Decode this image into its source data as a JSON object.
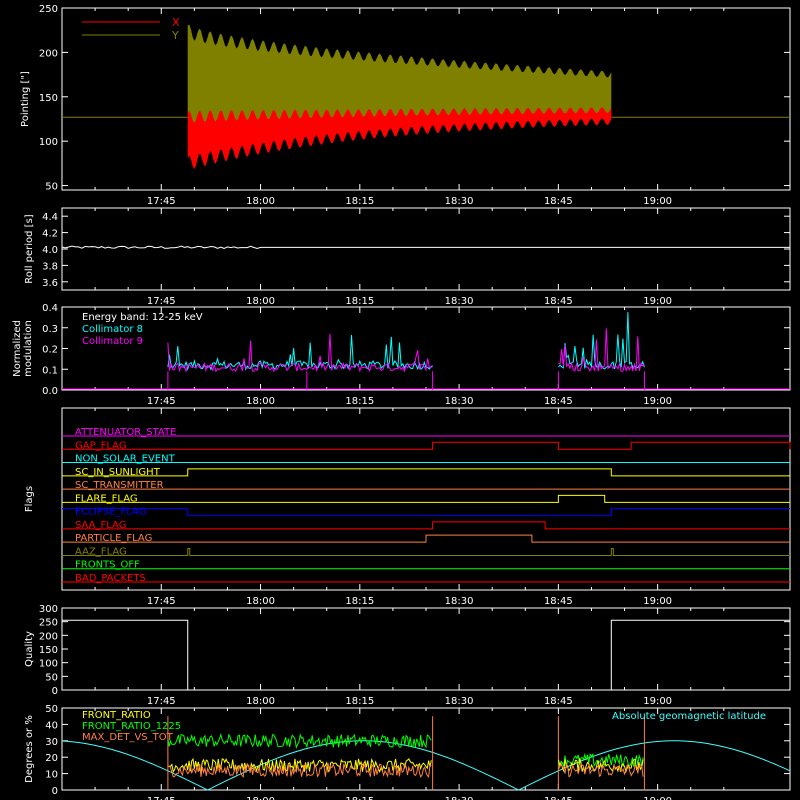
{
  "colors": {
    "background": "#000000",
    "frame": "#ffffff",
    "red": "#ff0000",
    "olive": "#808000",
    "white": "#ffffff",
    "cyan": "#00ffff",
    "magenta": "#ff00ff",
    "orange": "#ff8040",
    "yellow": "#ffff00",
    "blue": "#0000ff",
    "green": "#00ff00",
    "lightcyan": "#40ffff"
  },
  "chart_data": [
    {
      "id": "pointing",
      "type": "area",
      "ylabel": "Pointing [\"]",
      "xlim": [
        "17:30",
        "19:20"
      ],
      "ylim": [
        45,
        250
      ],
      "yticks": [
        50,
        100,
        150,
        200,
        250
      ],
      "xticks": [
        "17:45",
        "18:00",
        "18:15",
        "18:30",
        "18:45",
        "19:00"
      ],
      "legend": {
        "placement": "top-left"
      },
      "series": [
        {
          "name": "X",
          "color": "red",
          "baseline_before": 127,
          "start": "17:49",
          "low_start": 75,
          "low_end": 128,
          "high_start": 112,
          "high_end": 135,
          "end": "18:53",
          "baseline_after": 127
        },
        {
          "name": "Y",
          "color": "olive",
          "low_start": 112,
          "low_end": 135,
          "high_start": 225,
          "high_end": 175,
          "end": "18:53"
        }
      ]
    },
    {
      "id": "roll_period",
      "type": "line",
      "ylabel": "Roll period [s]",
      "xlim": [
        "17:30",
        "19:20"
      ],
      "ylim": [
        3.5,
        4.5
      ],
      "yticks": [
        3.6,
        3.8,
        4.0,
        4.2,
        4.4
      ],
      "ytick_labels": [
        "3.6",
        "3.8",
        "4.0",
        "4.2",
        "4.4"
      ],
      "xticks": [
        "17:45",
        "18:00",
        "18:15",
        "18:30",
        "18:45",
        "19:00"
      ],
      "series": [
        {
          "value": 4.02,
          "color": "white"
        }
      ]
    },
    {
      "id": "modulation",
      "type": "line",
      "ylabel": "Normalized modulation",
      "ylabel_lines": [
        "Normalized",
        "modulation"
      ],
      "xlim": [
        "17:30",
        "19:20"
      ],
      "ylim": [
        0.0,
        0.4
      ],
      "yticks": [
        0.0,
        0.1,
        0.2,
        0.3,
        0.4
      ],
      "ytick_labels": [
        "0.0",
        "0.1",
        "0.2",
        "0.3",
        "0.4"
      ],
      "xticks": [
        "17:45",
        "18:00",
        "18:15",
        "18:30",
        "18:45",
        "19:00"
      ],
      "annotation": "Energy band: 12-25 keV",
      "segments": [
        [
          "17:46",
          "18:26"
        ],
        [
          "18:45",
          "18:58"
        ]
      ],
      "series": [
        {
          "name": "Collimator 8",
          "color": "cyan",
          "level": 0.1
        },
        {
          "name": "Collimator 9",
          "color": "magenta",
          "level": 0.09
        }
      ]
    },
    {
      "id": "flags",
      "type": "line",
      "ylabel": "Flags",
      "xlim": [
        "17:30",
        "19:20"
      ],
      "xticks": [
        "17:45",
        "18:00",
        "18:15",
        "18:30",
        "18:45",
        "19:00"
      ],
      "rows": [
        {
          "name": "ATTENUATOR_STATE",
          "color": "magenta",
          "steps": []
        },
        {
          "name": "GAP_FLAG",
          "color": "red",
          "steps": [
            [
              "18:26",
              "18:45"
            ],
            [
              "18:56",
              "19:20"
            ]
          ]
        },
        {
          "name": "NON_SOLAR_EVENT",
          "color": "cyan",
          "steps": []
        },
        {
          "name": "SC_IN_SUNLIGHT",
          "color": "yellow",
          "steps": [
            [
              "17:49",
              "18:53"
            ]
          ]
        },
        {
          "name": "SC_TRANSMITTER",
          "color": "orange",
          "steps": []
        },
        {
          "name": "FLARE_FLAG",
          "color": "yellow",
          "steps": [
            [
              "18:45",
              "18:52"
            ]
          ]
        },
        {
          "name": "ECLIPSE_FLAG",
          "color": "blue",
          "inverted": true,
          "steps": [
            [
              "17:49",
              "18:53"
            ]
          ]
        },
        {
          "name": "SAA_FLAG",
          "color": "red",
          "steps": [
            [
              "18:26",
              "18:43"
            ]
          ]
        },
        {
          "name": "PARTICLE_FLAG",
          "color": "orange",
          "steps": [
            [
              "18:25",
              "18:41"
            ]
          ]
        },
        {
          "name": "AAZ_FLAG",
          "color": "olive",
          "spikes": [
            "17:49",
            "18:53"
          ]
        },
        {
          "name": "FRONTS_OFF",
          "color": "green",
          "steps": []
        },
        {
          "name": "BAD_PACKETS",
          "color": "red",
          "steps": []
        }
      ]
    },
    {
      "id": "quality",
      "type": "line",
      "ylabel": "Quality",
      "xlim": [
        "17:30",
        "19:20"
      ],
      "ylim": [
        0,
        300
      ],
      "yticks": [
        0,
        50,
        100,
        150,
        200,
        250,
        300
      ],
      "xticks": [
        "17:45",
        "18:00",
        "18:15",
        "18:30",
        "18:45",
        "19:00"
      ],
      "series": [
        {
          "color": "white",
          "high": 255,
          "low": 0,
          "low_from": "17:49",
          "low_to": "18:53"
        }
      ]
    },
    {
      "id": "latitude",
      "type": "line",
      "ylabel": "Degrees or %",
      "xlim": [
        "17:30",
        "19:20"
      ],
      "ylim": [
        0,
        50
      ],
      "yticks": [
        0,
        10,
        20,
        30,
        40,
        50
      ],
      "xticks": [
        "17:45",
        "18:00",
        "18:15",
        "18:30",
        "18:45",
        "19:00"
      ],
      "legend": {
        "placement": "top-left"
      },
      "right_label": "Absolute geomagnetic latitude",
      "series": [
        {
          "name": "FRONT_RATIO",
          "color": "yellow",
          "level": 15
        },
        {
          "name": "FRONT_RATIO_1225",
          "color": "green",
          "level": 30
        },
        {
          "name": "MAX_DET_VS_TOT",
          "color": "orange",
          "level": 12
        },
        {
          "name": "Absolute geomagnetic latitude",
          "color": "lightcyan"
        }
      ],
      "segments": [
        [
          "17:46",
          "18:26"
        ],
        [
          "18:45",
          "18:58"
        ]
      ]
    }
  ]
}
